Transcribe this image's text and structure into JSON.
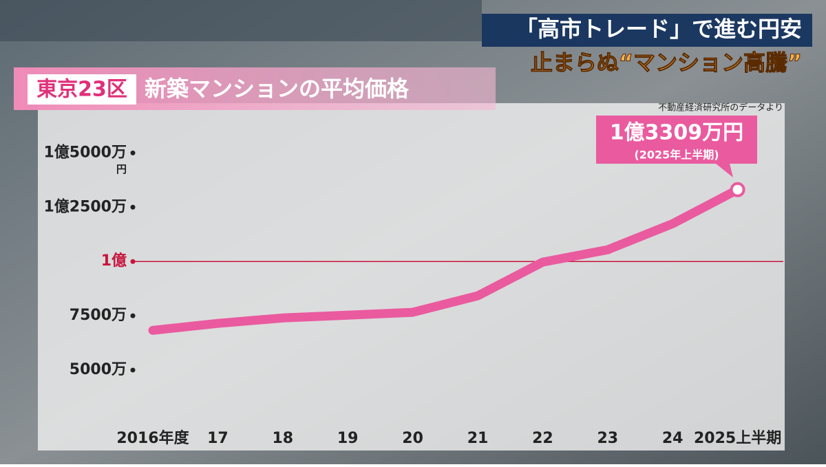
{
  "headline": {
    "line1": "「高市トレード」で進む円安",
    "line2": "止まらぬ“マンション高騰”"
  },
  "chart_data": {
    "type": "line",
    "badge": "東京23区",
    "title": "新築マンションの平均価格",
    "source": "不動産経済研究所のデータより",
    "categories": [
      "2016年度",
      "17",
      "18",
      "19",
      "20",
      "21",
      "22",
      "23",
      "24",
      "2025上半期"
    ],
    "series": [
      {
        "name": null,
        "color": "#ea5a9f",
        "values": [
          6830,
          7150,
          7400,
          7530,
          7660,
          8420,
          9970,
          10540,
          11740,
          13309
        ],
        "value_labels": [
          null,
          null,
          null,
          null,
          null,
          null,
          null,
          null,
          null,
          "1億3309万円"
        ]
      }
    ],
    "value_note": "(2025年上半期)",
    "ylim": [
      2500,
      16500
    ],
    "yticks": [
      {
        "value": 5000,
        "label": "5000万"
      },
      {
        "value": 7500,
        "label": "7500万"
      },
      {
        "value": 10000,
        "label": "1億"
      },
      {
        "value": 12500,
        "label": "1億2500万"
      },
      {
        "value": 15000,
        "label": "1億5000万"
      }
    ],
    "y_unit": "円",
    "reference_line": {
      "value": 10000,
      "color": "#c8143c"
    }
  }
}
